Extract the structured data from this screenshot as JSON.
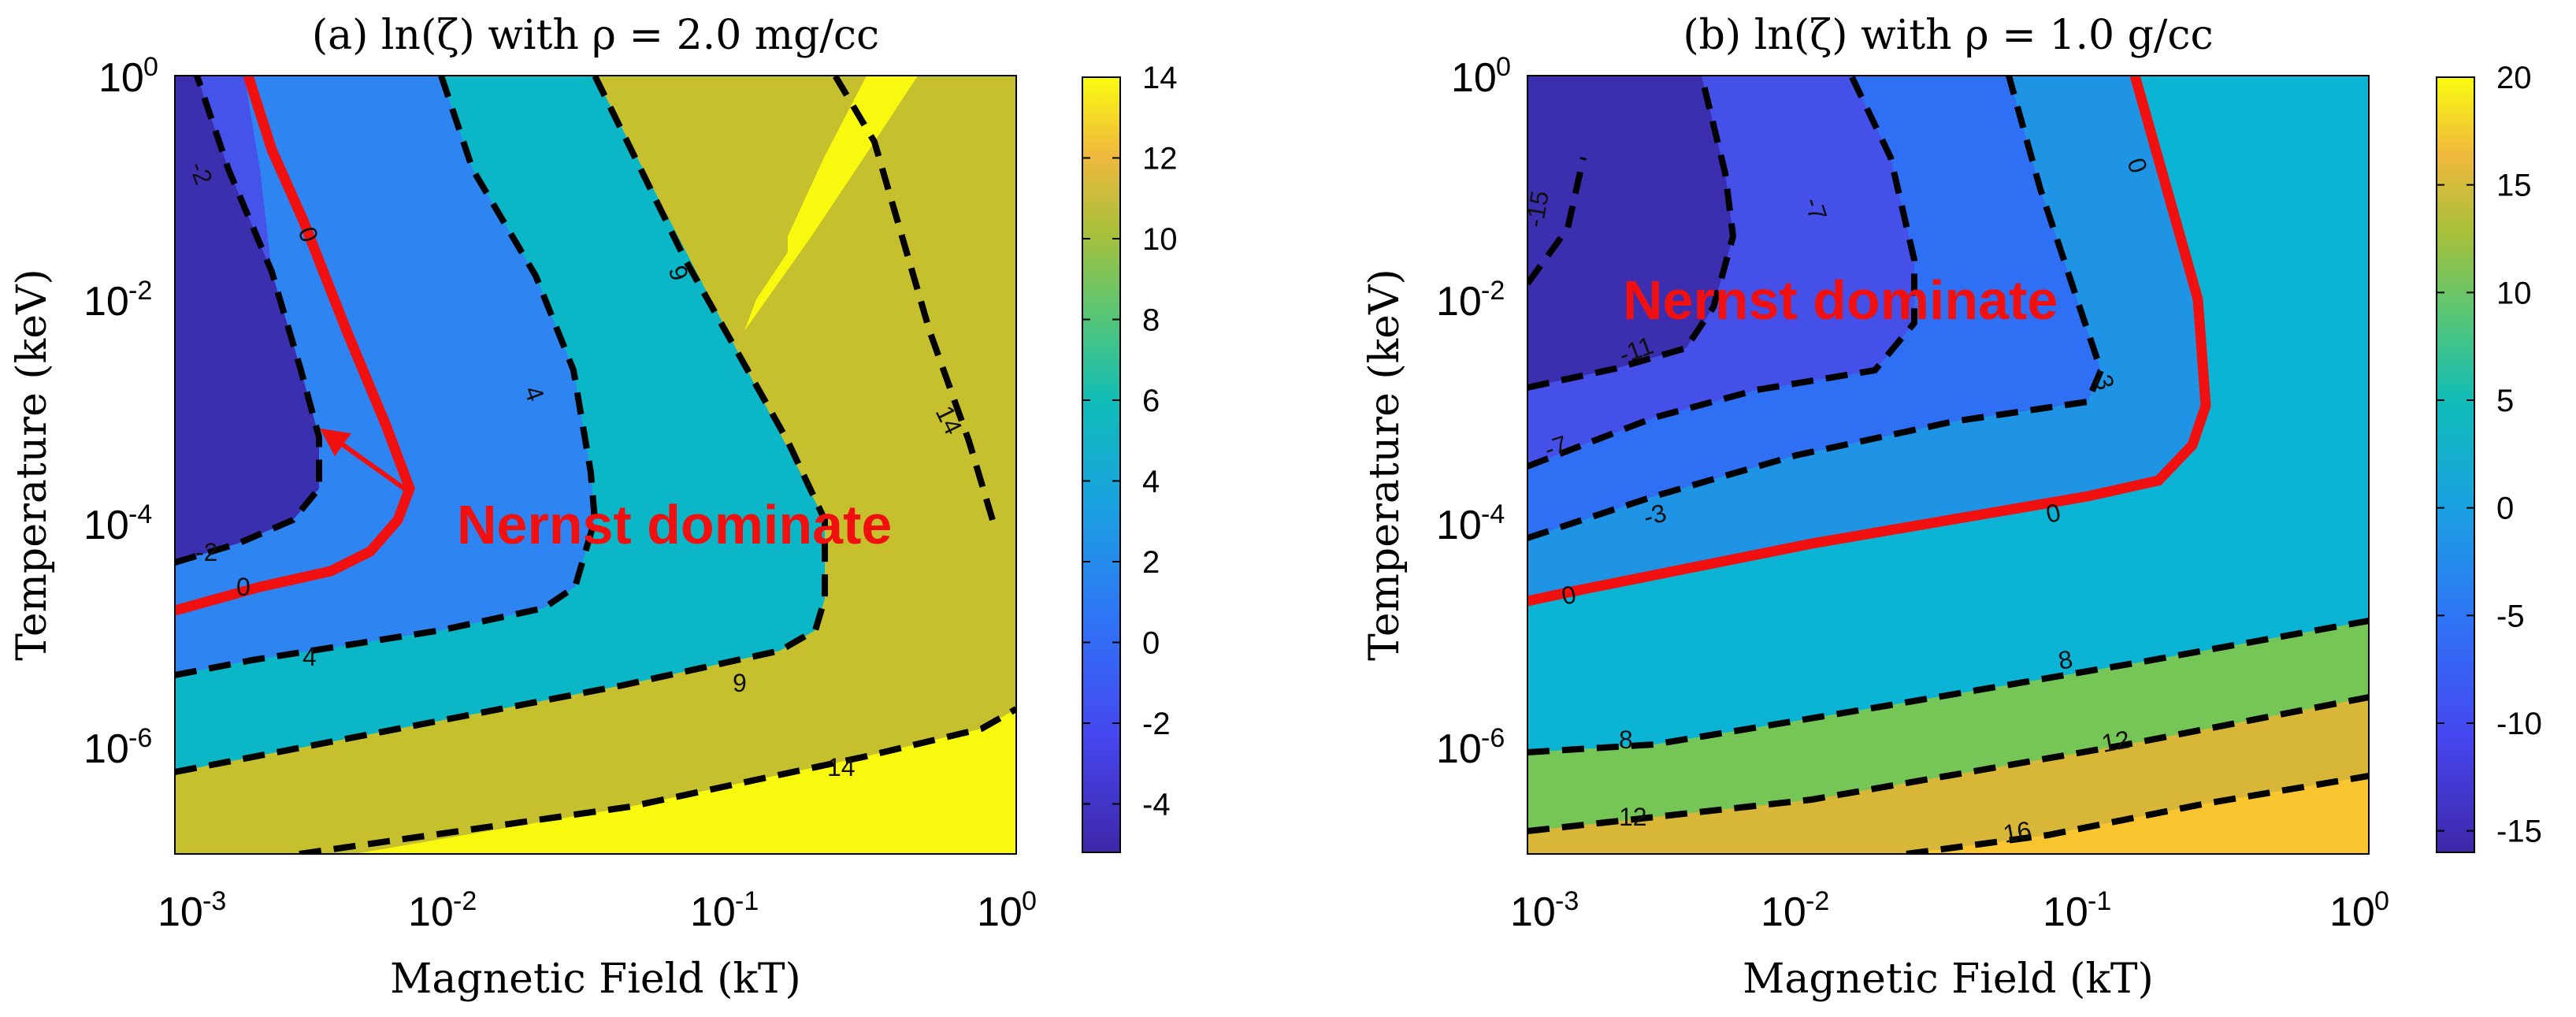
{
  "chart_data": [
    {
      "type": "contour",
      "panel": "a",
      "title": "(a) ln(ζ) with ρ = 2.0 mg/cc",
      "xlabel": "Magnetic Field (kT)",
      "ylabel": "Temperature (keV)",
      "xscale": "log",
      "yscale": "log",
      "xlim": [
        0.001,
        1
      ],
      "ylim": [
        1e-07,
        1
      ],
      "x_ticks": [
        {
          "base": "10",
          "exp": "-3"
        },
        {
          "base": "10",
          "exp": "-2"
        },
        {
          "base": "10",
          "exp": "-1"
        },
        {
          "base": "10",
          "exp": "0"
        }
      ],
      "y_ticks": [
        {
          "base": "10",
          "exp": "0"
        },
        {
          "base": "10",
          "exp": "-2"
        },
        {
          "base": "10",
          "exp": "-4"
        },
        {
          "base": "10",
          "exp": "-6"
        }
      ],
      "colorbar": {
        "min": -5.2,
        "max": 14,
        "ticks": [
          "14",
          "12",
          "10",
          "8",
          "6",
          "4",
          "2",
          "0",
          "-2",
          "-4"
        ],
        "tick_values": [
          14,
          12,
          10,
          8,
          6,
          4,
          2,
          0,
          -2,
          -4
        ]
      },
      "contour_levels": [
        -2,
        0,
        4,
        9,
        14
      ],
      "highlight_level": 0,
      "region_colors": [
        "#3b2fb0",
        "#4553ea",
        "#2e84f0",
        "#0bb6c6",
        "#c6bf2e",
        "#f8f90f"
      ],
      "contour_labels": [
        "-2",
        "0",
        "4",
        "9",
        "14",
        "-2",
        "0",
        "4",
        "9",
        "14"
      ],
      "annotation": "Nernst dominate"
    },
    {
      "type": "contour",
      "panel": "b",
      "title": "(b) ln(ζ) with ρ = 1.0 g/cc",
      "xlabel": "Magnetic Field (kT)",
      "ylabel": "Temperature (keV)",
      "xscale": "log",
      "yscale": "log",
      "xlim": [
        0.001,
        1
      ],
      "ylim": [
        1e-07,
        1
      ],
      "x_ticks": [
        {
          "base": "10",
          "exp": "-3"
        },
        {
          "base": "10",
          "exp": "-2"
        },
        {
          "base": "10",
          "exp": "-1"
        },
        {
          "base": "10",
          "exp": "0"
        }
      ],
      "y_ticks": [
        {
          "base": "10",
          "exp": "0"
        },
        {
          "base": "10",
          "exp": "-2"
        },
        {
          "base": "10",
          "exp": "-4"
        },
        {
          "base": "10",
          "exp": "-6"
        }
      ],
      "colorbar": {
        "min": -16,
        "max": 20,
        "ticks": [
          "20",
          "15",
          "10",
          "5",
          "0",
          "-5",
          "-10",
          "-15"
        ],
        "tick_values": [
          20,
          15,
          10,
          5,
          0,
          -5,
          -10,
          -15
        ]
      },
      "contour_levels": [
        -15,
        -11,
        -7,
        -3,
        0,
        8,
        12,
        16
      ],
      "highlight_level": 0,
      "region_colors": [
        "#3b2fb0",
        "#4450e8",
        "#2f6ff4",
        "#1f94e4",
        "#0bb3d4",
        "#75c657",
        "#d8b637",
        "#f9c630"
      ],
      "contour_labels": [
        "-15",
        "-11",
        "-7",
        "-7",
        "-3",
        "-3",
        "0",
        "0",
        "0",
        "8",
        "8",
        "12",
        "12",
        "16"
      ],
      "annotation": "Nernst dominate"
    }
  ]
}
